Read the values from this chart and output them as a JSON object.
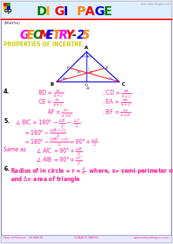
{
  "bg_color": "#ffffff",
  "border_color": "#9999bb",
  "header_bg": "#ddeeff",
  "red_line_color": "#ff0000",
  "title_letters": [
    "D",
    "I",
    "G",
    "I",
    " ",
    "P",
    "A",
    "G",
    "E"
  ],
  "title_colors": [
    "#008000",
    "#ffaa00",
    "#ff0000",
    "#0000cc",
    "#000000",
    "#ff8800",
    "#ff0000",
    "#0000cc",
    "#008000"
  ],
  "geo_letters": [
    "G",
    "E",
    "O",
    "M",
    "E",
    "T",
    "R",
    "Y",
    "-",
    "2",
    "5"
  ],
  "geo_colors": [
    "#ff00ff",
    "#ff8800",
    "#008000",
    "#ff0000",
    "#0000ff",
    "#ff8800",
    "#ff00ff",
    "#ff0000",
    "#333333",
    "#0000ff",
    "#ff8800"
  ],
  "section_color": "#cccc00",
  "formula_color": "#ff1493",
  "black": "#000000",
  "blue": "#0000ff",
  "red": "#ff0000",
  "footer_color": "#ff1493",
  "website": "www.mahendraguru.com",
  "footer_date": "Date of Release : 19-MAY-16",
  "footer_subject": "SUBJECT: MATHS"
}
